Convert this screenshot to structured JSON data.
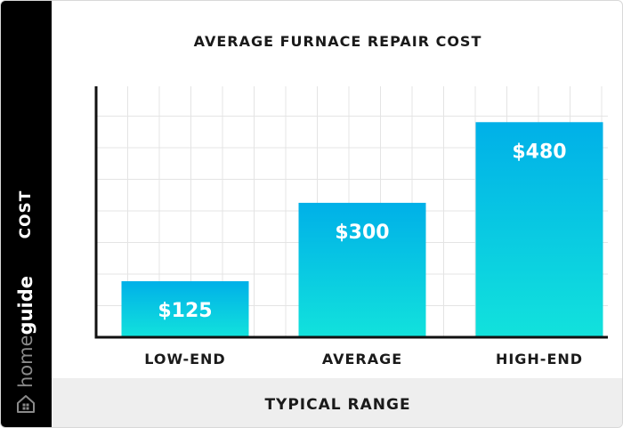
{
  "title": "AVERAGE FURNACE REPAIR COST",
  "ylabel": "COST",
  "xlabel": "TYPICAL RANGE",
  "brand": {
    "light": "home",
    "bold": "guide"
  },
  "brand_icon": "house-icon",
  "colors": {
    "bar_top": "#00b0e8",
    "bar_bottom": "#12e2dc",
    "sidebar": "#000000",
    "footer": "#eeeeee",
    "grid": "#e4e4e4"
  },
  "chart_data": {
    "type": "bar",
    "title": "AVERAGE FURNACE REPAIR COST",
    "xlabel": "TYPICAL RANGE",
    "ylabel": "COST",
    "categories": [
      "LOW-END",
      "AVERAGE",
      "HIGH-END"
    ],
    "values": [
      125,
      300,
      480
    ],
    "value_labels": [
      "$125",
      "$300",
      "$480"
    ],
    "ylim": [
      0,
      560
    ],
    "grid": true
  }
}
